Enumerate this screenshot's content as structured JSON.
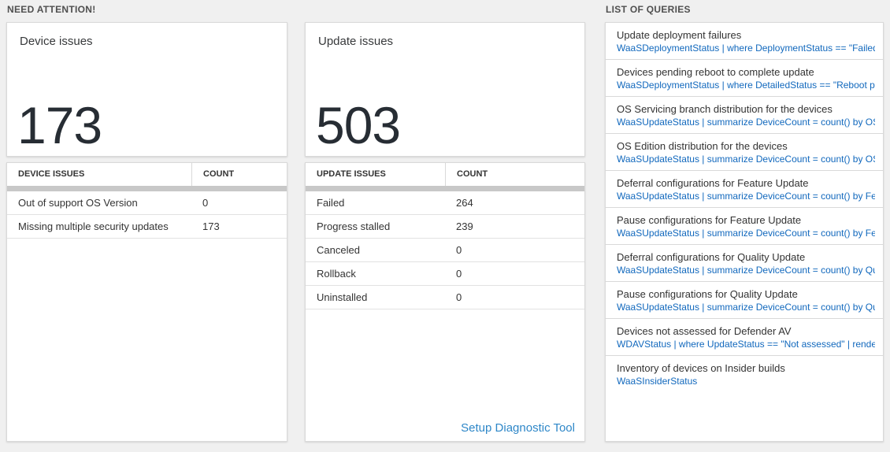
{
  "sections": {
    "need_attention": "NEED ATTENTION!",
    "list_of_queries": "LIST OF QUERIES"
  },
  "device_card": {
    "title": "Device issues",
    "value": "173"
  },
  "update_card": {
    "title": "Update issues",
    "value": "503"
  },
  "device_table": {
    "label_header": "DEVICE ISSUES",
    "count_header": "COUNT",
    "rows": [
      {
        "label": "Out of support OS Version",
        "count": "0"
      },
      {
        "label": "Missing multiple security updates",
        "count": "173"
      }
    ]
  },
  "update_table": {
    "label_header": "UPDATE ISSUES",
    "count_header": "COUNT",
    "rows": [
      {
        "label": "Failed",
        "count": "264"
      },
      {
        "label": "Progress stalled",
        "count": "239"
      },
      {
        "label": "Canceled",
        "count": "0"
      },
      {
        "label": "Rollback",
        "count": "0"
      },
      {
        "label": "Uninstalled",
        "count": "0"
      }
    ],
    "link": "Setup Diagnostic Tool"
  },
  "queries": {
    "items": [
      {
        "title": "Update deployment failures",
        "query": "WaaSDeploymentStatus | where DeploymentStatus == \"Failed\" |..."
      },
      {
        "title": "Devices pending reboot to complete update",
        "query": "WaaSDeploymentStatus | where DetailedStatus == \"Reboot pend..."
      },
      {
        "title": "OS Servicing branch distribution for the devices",
        "query": "WaaSUpdateStatus | summarize DeviceCount = count() by OSSer..."
      },
      {
        "title": "OS Edition distribution for the devices",
        "query": "WaaSUpdateStatus | summarize DeviceCount = count() by OSEdit..."
      },
      {
        "title": "Deferral configurations for Feature Update",
        "query": "WaaSUpdateStatus | summarize DeviceCount = count() by Featur..."
      },
      {
        "title": "Pause configurations for Feature Update",
        "query": "WaaSUpdateStatus | summarize DeviceCount = count() by Featur..."
      },
      {
        "title": "Deferral configurations for Quality Update",
        "query": "WaaSUpdateStatus | summarize DeviceCount = count() by Qualit..."
      },
      {
        "title": "Pause configurations for Quality Update",
        "query": "WaaSUpdateStatus | summarize DeviceCount = count() by Qualit..."
      },
      {
        "title": "Devices not assessed for Defender AV",
        "query": "WDAVStatus | where UpdateStatus == \"Not assessed\" | render ta..."
      },
      {
        "title": "Inventory of devices on Insider builds",
        "query": "WaaSInsiderStatus"
      }
    ]
  },
  "colors": {
    "page_background": "#f0f0f0",
    "card_background": "#ffffff",
    "card_border": "#d9d9d9",
    "stat_value_text": "#272d34",
    "body_text": "#333333",
    "query_blue": "#1168bd",
    "link_blue": "#2e87c8",
    "scrollbar_gray": "#c8c8c8"
  }
}
